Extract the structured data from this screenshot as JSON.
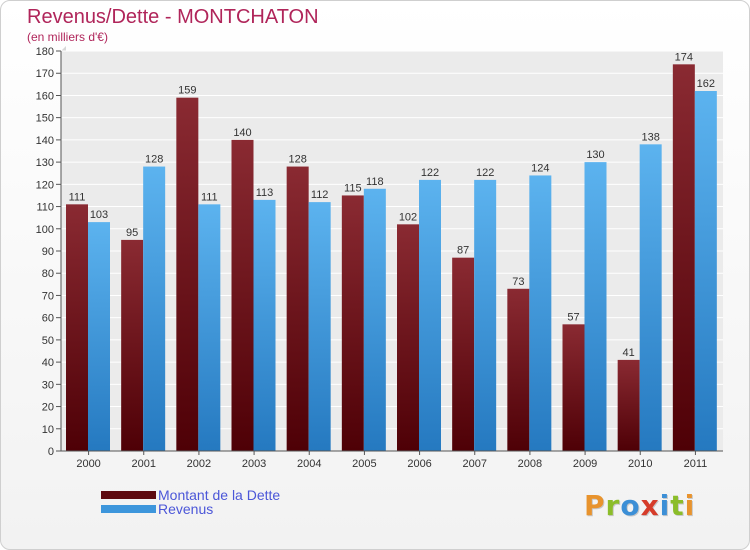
{
  "header": {
    "title": "Revenus/Dette - MONTCHATON",
    "subtitle": "(en milliers d'€)"
  },
  "colors": {
    "title": "#b0255a",
    "dette": "#6b0f16",
    "revenus": "#3d96dc",
    "legend_text": "#4b56d8"
  },
  "legend": {
    "items": [
      {
        "label": "Montant de la Dette",
        "color": "#5e0a0f"
      },
      {
        "label": "Revenus",
        "color": "#3d96dc"
      }
    ]
  },
  "logo": {
    "text": "Proxiti",
    "letter_colors": [
      "#e8932d",
      "#8cbd2a",
      "#3c8fd6",
      "#d63c2a",
      "#3c8fd6",
      "#8cbd2a",
      "#e8932d"
    ]
  },
  "chart_data": {
    "type": "bar",
    "title": "Revenus/Dette - MONTCHATON",
    "subtitle": "(en milliers d'€)",
    "categories": [
      "2000",
      "2001",
      "2002",
      "2003",
      "2004",
      "2005",
      "2006",
      "2007",
      "2008",
      "2009",
      "2010",
      "2011"
    ],
    "series": [
      {
        "name": "Montant de la Dette",
        "values": [
          111,
          95,
          159,
          140,
          128,
          115,
          102,
          87,
          73,
          57,
          41,
          174
        ]
      },
      {
        "name": "Revenus",
        "values": [
          103,
          128,
          111,
          113,
          112,
          118,
          122,
          122,
          124,
          130,
          138,
          162
        ]
      }
    ],
    "ylim": [
      0,
      180
    ],
    "ytick_step": 10,
    "grid": true,
    "legend_position": "bottom-left"
  }
}
